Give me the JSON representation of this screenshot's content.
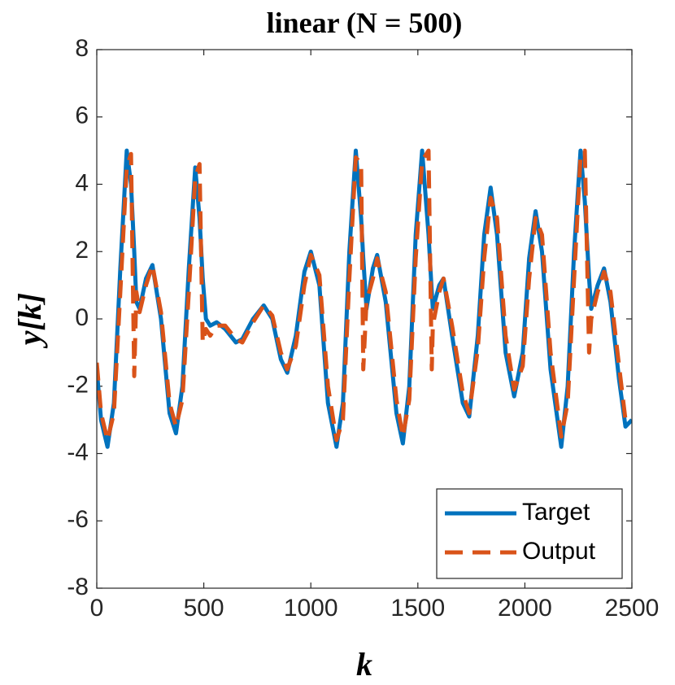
{
  "chart_data": {
    "type": "line",
    "title": "linear (N = 500)",
    "xlabel": "k",
    "ylabel": "y[k]",
    "x": [
      0,
      20,
      50,
      80,
      110,
      140,
      160,
      175,
      185,
      200,
      230,
      260,
      300,
      340,
      370,
      400,
      430,
      460,
      480,
      495,
      510,
      530,
      560,
      600,
      650,
      680,
      730,
      780,
      820,
      860,
      890,
      930,
      970,
      1000,
      1040,
      1080,
      1120,
      1150,
      1180,
      1210,
      1235,
      1245,
      1260,
      1290,
      1310,
      1350,
      1400,
      1430,
      1460,
      1490,
      1520,
      1550,
      1565,
      1570,
      1600,
      1620,
      1660,
      1710,
      1740,
      1780,
      1810,
      1840,
      1870,
      1910,
      1950,
      1990,
      2020,
      2050,
      2080,
      2120,
      2170,
      2200,
      2230,
      2260,
      2280,
      2300,
      2310,
      2340,
      2370,
      2400,
      2440,
      2470,
      2500
    ],
    "series": [
      {
        "name": "Target",
        "color": "#0072BD",
        "dash": false,
        "values": [
          -1.5,
          -3.0,
          -3.8,
          -2.5,
          1.5,
          5.0,
          4.0,
          2.0,
          0.5,
          0.3,
          1.2,
          1.6,
          0.0,
          -2.8,
          -3.4,
          -2.0,
          1.5,
          4.5,
          3.0,
          1.2,
          0.0,
          -0.2,
          -0.1,
          -0.3,
          -0.7,
          -0.6,
          0.0,
          0.4,
          0.0,
          -1.2,
          -1.6,
          -0.5,
          1.4,
          2.0,
          1.0,
          -2.5,
          -3.8,
          -2.5,
          2.0,
          5.0,
          3.0,
          1.8,
          0.3,
          1.5,
          1.9,
          0.5,
          -2.8,
          -3.7,
          -2.0,
          2.5,
          5.0,
          2.5,
          0.8,
          0.3,
          1.0,
          1.2,
          -0.5,
          -2.5,
          -2.9,
          -0.5,
          2.5,
          3.9,
          2.5,
          -1.0,
          -2.3,
          -1.0,
          1.8,
          3.2,
          2.0,
          -1.5,
          -3.8,
          -2.0,
          2.0,
          5.0,
          3.5,
          1.2,
          0.3,
          1.0,
          1.5,
          0.5,
          -1.8,
          -3.2,
          -3.0
        ]
      },
      {
        "name": "Output",
        "color": "#D95319",
        "dash": true,
        "values": [
          -1.3,
          -2.8,
          -3.6,
          -2.8,
          0.8,
          4.5,
          4.9,
          -1.7,
          0.8,
          0.2,
          1.0,
          1.6,
          0.2,
          -2.5,
          -3.2,
          -2.4,
          0.8,
          4.2,
          4.6,
          -0.7,
          -0.3,
          -0.5,
          -0.2,
          -0.2,
          -0.6,
          -0.7,
          -0.1,
          0.4,
          0.1,
          -1.0,
          -1.5,
          -0.8,
          1.0,
          1.9,
          1.3,
          -2.0,
          -3.6,
          -3.0,
          1.2,
          4.8,
          4.6,
          -1.5,
          0.5,
          1.2,
          1.8,
          0.8,
          -2.4,
          -3.5,
          -2.4,
          1.8,
          4.7,
          5.0,
          -1.5,
          -0.2,
          0.8,
          1.2,
          -0.2,
          -2.2,
          -2.8,
          -0.9,
          1.8,
          3.6,
          3.0,
          -0.5,
          -2.1,
          -1.4,
          1.2,
          3.0,
          2.5,
          -1.0,
          -3.5,
          -2.5,
          1.2,
          4.8,
          5.0,
          -1.0,
          0.0,
          0.8,
          1.4,
          0.8,
          -1.4,
          -3.0,
          -3.1
        ]
      }
    ],
    "xlim": [
      0,
      2500
    ],
    "xticks": [
      0,
      500,
      1000,
      1500,
      2000,
      2500
    ],
    "ylim": [
      -8,
      8
    ],
    "yticks": [
      -8,
      -6,
      -4,
      -2,
      0,
      2,
      4,
      6,
      8
    ],
    "grid": false,
    "legend": "lower right"
  }
}
